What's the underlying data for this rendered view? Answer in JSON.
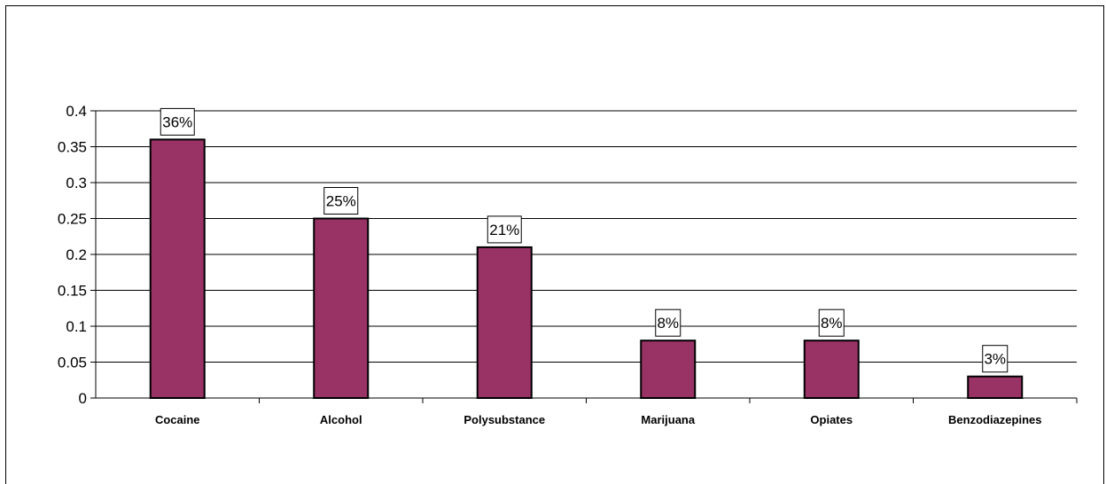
{
  "chart_data": {
    "type": "bar",
    "title": "",
    "xlabel": "",
    "ylabel": "",
    "categories": [
      "Cocaine",
      "Alcohol",
      "Polysubstance",
      "Marijuana",
      "Opiates",
      "Benzodiazepines"
    ],
    "values": [
      0.36,
      0.25,
      0.21,
      0.08,
      0.08,
      0.03
    ],
    "data_labels": [
      "36%",
      "25%",
      "21%",
      "8%",
      "8%",
      "3%"
    ],
    "ylim": [
      0,
      0.4
    ],
    "yticks": [
      "0",
      "0.05",
      "0.1",
      "0.15",
      "0.2",
      "0.25",
      "0.3",
      "0.35",
      "0.4"
    ],
    "grid": true,
    "legend": "none",
    "colors": {
      "bar_fill": "#993366",
      "bar_stroke": "#000000",
      "gridline": "#000000"
    }
  }
}
